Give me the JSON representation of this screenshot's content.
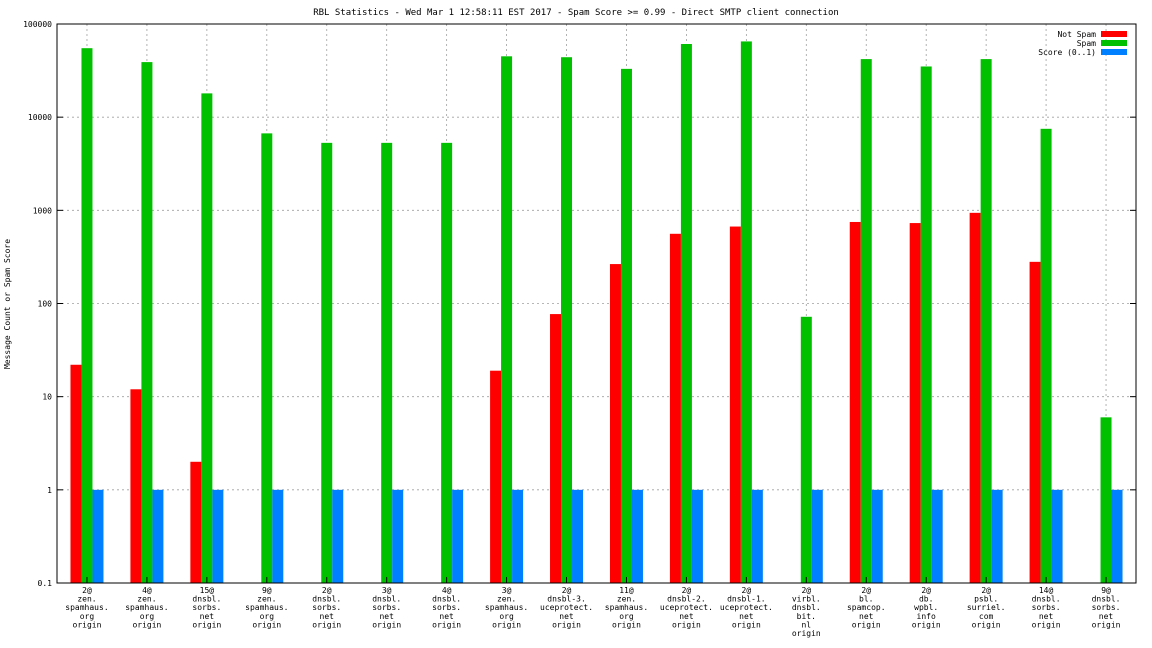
{
  "chart_data": {
    "type": "bar",
    "title": "RBL Statistics - Wed Mar  1 12:58:11 EST 2017 - Spam Score >= 0.99 - Direct SMTP client connection",
    "xlabel": "",
    "ylabel": "Message Count or Spam Score",
    "yscale": "log",
    "ylim": [
      0.1,
      100000
    ],
    "yticks": [
      "0.1",
      "1",
      "10",
      "100",
      "1000",
      "10000",
      "100000"
    ],
    "grid": true,
    "legend_position": "top-right",
    "categories": [
      [
        "2@",
        "zen.",
        "spamhaus.",
        "org",
        "origin"
      ],
      [
        "4@",
        "zen.",
        "spamhaus.",
        "org",
        "origin"
      ],
      [
        "15@",
        "dnsbl.",
        "sorbs.",
        "net",
        "origin"
      ],
      [
        "9@",
        "zen.",
        "spamhaus.",
        "org",
        "origin"
      ],
      [
        "2@",
        "dnsbl.",
        "sorbs.",
        "net",
        "origin"
      ],
      [
        "3@",
        "dnsbl.",
        "sorbs.",
        "net",
        "origin"
      ],
      [
        "4@",
        "dnsbl.",
        "sorbs.",
        "net",
        "origin"
      ],
      [
        "3@",
        "zen.",
        "spamhaus.",
        "org",
        "origin"
      ],
      [
        "2@",
        "dnsbl-3.",
        "uceprotect.",
        "net",
        "origin"
      ],
      [
        "11@",
        "zen.",
        "spamhaus.",
        "org",
        "origin"
      ],
      [
        "2@",
        "dnsbl-2.",
        "uceprotect.",
        "net",
        "origin"
      ],
      [
        "2@",
        "dnsbl-1.",
        "uceprotect.",
        "net",
        "origin"
      ],
      [
        "2@",
        "virbl.",
        "dnsbl.",
        "bit.",
        "nl",
        "origin"
      ],
      [
        "2@",
        "bl.",
        "spamcop.",
        "net",
        "origin"
      ],
      [
        "2@",
        "db.",
        "wpbl.",
        "info",
        "origin"
      ],
      [
        "2@",
        "psbl.",
        "surriel.",
        "com",
        "origin"
      ],
      [
        "14@",
        "dnsbl.",
        "sorbs.",
        "net",
        "origin"
      ],
      [
        "9@",
        "dnsbl.",
        "sorbs.",
        "net",
        "origin"
      ]
    ],
    "series": [
      {
        "name": "Not Spam",
        "color": "#ff0000",
        "values": [
          22,
          12,
          2,
          null,
          null,
          null,
          null,
          19,
          77,
          265,
          560,
          670,
          null,
          750,
          730,
          940,
          280,
          null
        ]
      },
      {
        "name": "Spam",
        "color": "#00c000",
        "values": [
          55000,
          39000,
          18000,
          6700,
          5300,
          5300,
          5300,
          45000,
          44000,
          33000,
          61000,
          65000,
          72,
          42000,
          35000,
          42000,
          7500,
          6
        ]
      },
      {
        "name": "Score (0..1)",
        "color": "#0080ff",
        "values": [
          1,
          1,
          1,
          1,
          1,
          1,
          1,
          1,
          1,
          1,
          1,
          1,
          1,
          1,
          1,
          1,
          1,
          1
        ]
      }
    ]
  }
}
